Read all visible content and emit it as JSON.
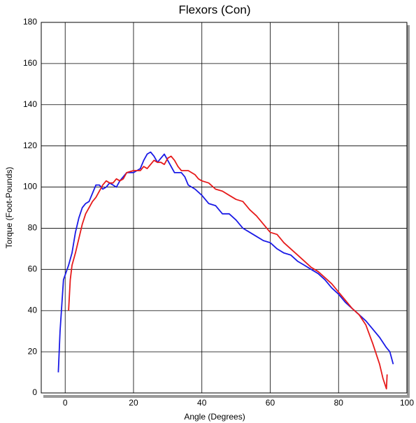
{
  "chart_data": {
    "type": "line",
    "title": "Flexors (Con)",
    "x_label": "Angle (Degrees)",
    "y_label": "Torque (Foot-Pounds)",
    "xlim": [
      -7,
      100
    ],
    "ylim": [
      0,
      180
    ],
    "xticks": [
      0,
      20,
      40,
      60,
      80,
      100
    ],
    "yticks": [
      0,
      20,
      40,
      60,
      80,
      100,
      120,
      140,
      160,
      180
    ],
    "grid": true,
    "series": [
      {
        "color": "#1a1ae6",
        "x": [
          -2,
          -1.5,
          -0.5,
          1,
          2,
          3,
          4,
          5,
          6,
          7,
          8,
          9,
          10,
          11,
          12,
          13,
          14,
          15,
          16,
          17,
          18,
          20,
          22,
          23,
          24,
          25,
          26,
          27,
          28,
          29,
          30,
          31,
          32,
          34,
          35,
          36,
          38,
          40,
          42,
          44,
          46,
          48,
          50,
          52,
          54,
          56,
          58,
          60,
          62,
          64,
          66,
          68,
          70,
          72,
          74,
          76,
          78,
          80,
          82,
          84,
          86,
          88,
          90,
          92,
          94,
          95,
          96
        ],
        "values": [
          10,
          30,
          55,
          62,
          68,
          78,
          85,
          90,
          92,
          93,
          97,
          101,
          101,
          99,
          100,
          102,
          101,
          100,
          103,
          105,
          107,
          107,
          109,
          113,
          116,
          117,
          115,
          112,
          114,
          116,
          113,
          110,
          107,
          107,
          105,
          101,
          99,
          96,
          92,
          91,
          87,
          87,
          84,
          80,
          78,
          76,
          74,
          73,
          70,
          68,
          67,
          64,
          62,
          60,
          58,
          55,
          51,
          48,
          44,
          41,
          38,
          35,
          31,
          27,
          22,
          20,
          14
        ]
      },
      {
        "color": "#e61a1a",
        "x": [
          1,
          1.5,
          2,
          3,
          4,
          5,
          6,
          7,
          8,
          9,
          10,
          11,
          12,
          13,
          14,
          15,
          16,
          17,
          18,
          20,
          22,
          23,
          24,
          25,
          26,
          27,
          28,
          29,
          30,
          31,
          32,
          33,
          34,
          36,
          38,
          39,
          40,
          42,
          44,
          46,
          48,
          50,
          52,
          54,
          56,
          58,
          60,
          62,
          64,
          66,
          68,
          70,
          72,
          74,
          76,
          78,
          80,
          82,
          84,
          86,
          88,
          90,
          92,
          93,
          94,
          94.2
        ],
        "values": [
          40,
          55,
          62,
          68,
          75,
          82,
          87,
          90,
          93,
          95,
          98,
          101,
          103,
          102,
          102,
          104,
          103,
          104,
          107,
          108,
          108,
          110,
          109,
          111,
          113,
          112,
          112,
          111,
          114,
          115,
          113,
          110,
          108,
          108,
          106,
          104,
          103,
          102,
          99,
          98,
          96,
          94,
          93,
          89,
          86,
          82,
          78,
          77,
          73,
          70,
          67,
          64,
          61,
          59,
          56,
          53,
          49,
          45,
          41,
          38,
          33,
          24,
          14,
          7,
          2,
          9
        ]
      }
    ]
  }
}
